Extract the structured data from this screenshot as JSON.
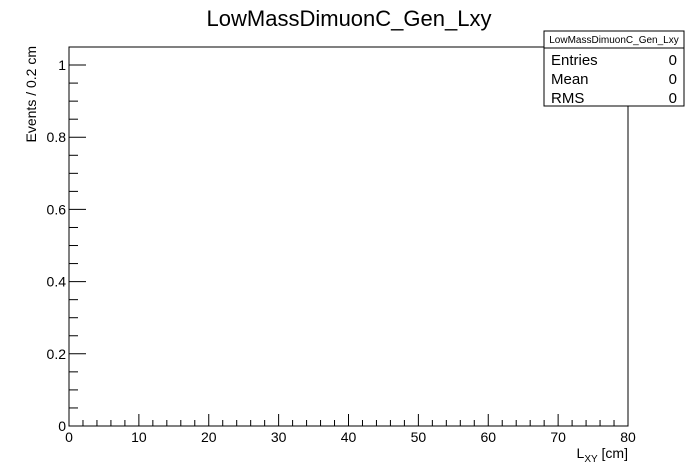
{
  "chart_data": {
    "type": "bar",
    "title": "LowMassDimuonC_Gen_Lxy",
    "xlabel": {
      "main": "L",
      "sub": "XY",
      "unit": " [cm]"
    },
    "ylabel": "Events / 0.2 cm",
    "xlim": [
      0,
      80
    ],
    "ylim": [
      0,
      1.05
    ],
    "x_ticks": [
      0,
      10,
      20,
      30,
      40,
      50,
      60,
      70,
      80
    ],
    "x_tick_labels": [
      "0",
      "10",
      "20",
      "30",
      "40",
      "50",
      "60",
      "70",
      "80"
    ],
    "y_ticks": [
      0,
      0.2,
      0.4,
      0.6,
      0.8,
      1
    ],
    "y_tick_labels": [
      "0",
      "0.2",
      "0.4",
      "0.6",
      "0.8",
      "1"
    ],
    "x_minor_step": 2,
    "y_minor_step": 0.05,
    "grid": false,
    "series": [],
    "stats_box": {
      "title": "LowMassDimuonC_Gen_Lxy",
      "rows": [
        {
          "label": "Entries",
          "value": "0"
        },
        {
          "label": "Mean",
          "value": "0"
        },
        {
          "label": "RMS",
          "value": "0"
        }
      ]
    }
  }
}
